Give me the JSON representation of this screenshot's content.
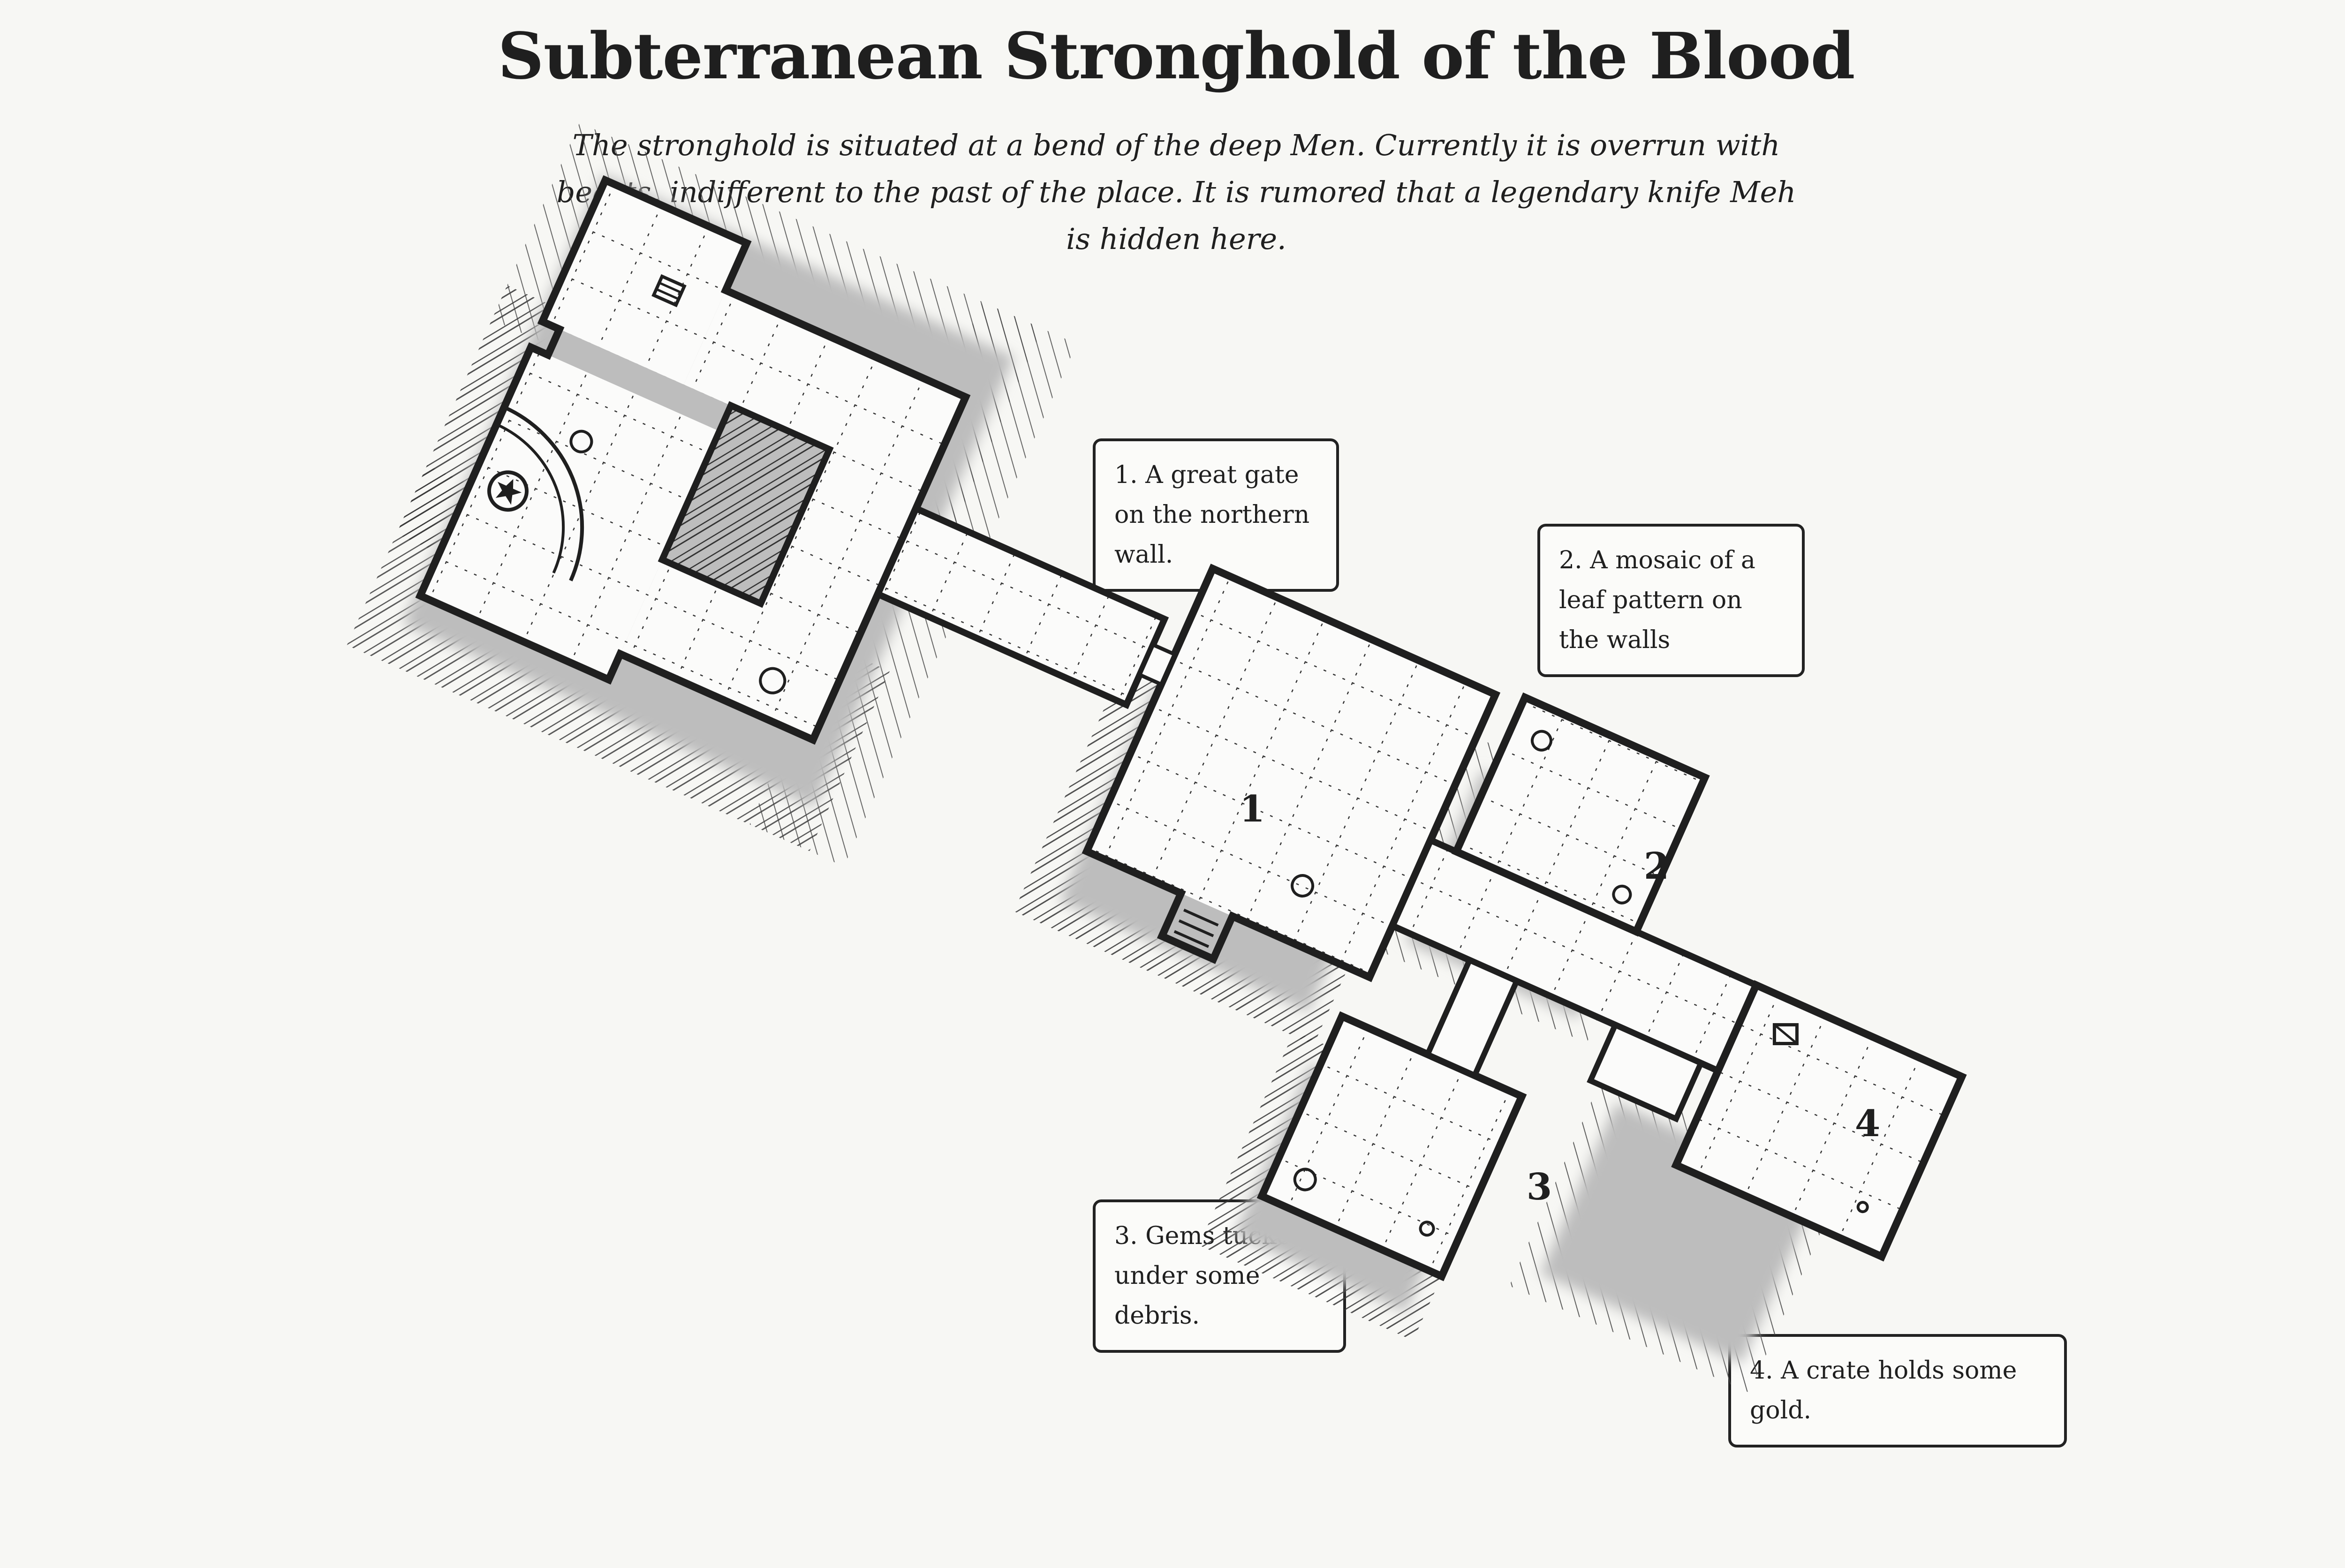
{
  "title": "Subterranean Stronghold of the Blood",
  "description": "The stronghold is situated at a bend of the deep Men. Currently it is overrun with beasts, indifferent to the past of the place. It is rumored that a legendary knife Meh is hidden here.",
  "legend": [
    {
      "text": "1. A great gate on the northern wall."
    },
    {
      "text": "2. A mosaic of a leaf pattern on the walls"
    },
    {
      "text": "3. Gems tucked under some debris."
    },
    {
      "text": "4. A crate holds some gold."
    }
  ],
  "room_labels": [
    "1",
    "2",
    "3",
    "4"
  ],
  "colors": {
    "background": "#f7f7f4",
    "wall": "#1f1f1f",
    "floor": "#fbfbfa",
    "shadow": "#c9c9c9"
  }
}
